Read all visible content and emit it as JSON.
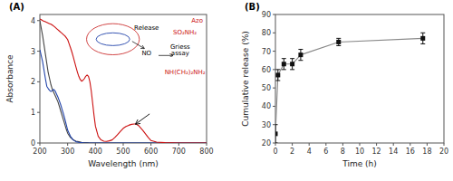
{
  "chart_data": [
    {
      "type": "line",
      "title": "(A)",
      "xlabel": "Wavelength (nm)",
      "ylabel": "Absorbance",
      "xlim": [
        200,
        800
      ],
      "ylim": [
        0,
        4.2
      ],
      "xticks": [
        200,
        300,
        400,
        500,
        600,
        700,
        800
      ],
      "yticks": [
        0,
        1,
        2,
        3,
        4
      ],
      "grid": false,
      "series": [
        {
          "color": "#444444",
          "x": [
            200,
            210,
            220,
            225,
            230,
            235,
            240,
            245,
            250,
            255,
            260,
            265,
            270,
            275,
            280,
            285,
            290,
            295,
            300,
            310,
            320,
            330,
            340,
            350,
            360,
            370,
            380,
            390,
            400,
            450,
            500,
            550,
            600,
            700,
            800
          ],
          "values": [
            4.0,
            3.5,
            2.9,
            2.6,
            2.3,
            2.1,
            1.9,
            1.75,
            1.65,
            1.55,
            1.45,
            1.35,
            1.2,
            1.05,
            0.9,
            0.75,
            0.6,
            0.45,
            0.32,
            0.18,
            0.1,
            0.06,
            0.04,
            0.02,
            0.01,
            0.01,
            0.0,
            0.0,
            0.0,
            0.0,
            0.0,
            0.0,
            0.0,
            0.0,
            0.0
          ]
        },
        {
          "color": "#2244aa",
          "x": [
            200,
            210,
            220,
            225,
            230,
            235,
            240,
            245,
            250,
            255,
            260,
            265,
            270,
            275,
            280,
            285,
            290,
            295,
            300,
            310,
            320,
            330,
            340,
            350,
            360,
            370,
            380,
            390,
            400,
            450,
            500,
            550,
            600,
            700,
            800
          ],
          "values": [
            3.05,
            2.65,
            2.1,
            1.85,
            1.78,
            1.72,
            1.68,
            1.72,
            1.75,
            1.7,
            1.6,
            1.5,
            1.38,
            1.25,
            1.1,
            0.95,
            0.78,
            0.6,
            0.42,
            0.22,
            0.1,
            0.04,
            0.02,
            0.01,
            0.0,
            0.0,
            0.0,
            0.0,
            0.0,
            0.0,
            0.0,
            0.0,
            0.0,
            0.0,
            0.0
          ]
        },
        {
          "color": "#cc1111",
          "x": [
            200,
            205,
            210,
            215,
            220,
            225,
            230,
            235,
            240,
            245,
            250,
            255,
            260,
            265,
            270,
            275,
            280,
            285,
            290,
            295,
            300,
            305,
            310,
            315,
            320,
            325,
            330,
            335,
            340,
            345,
            350,
            355,
            360,
            365,
            370,
            375,
            380,
            385,
            390,
            395,
            400,
            410,
            420,
            430,
            440,
            450,
            460,
            470,
            480,
            490,
            500,
            510,
            520,
            530,
            540,
            545,
            550,
            555,
            560,
            570,
            580,
            590,
            600,
            620,
            650,
            700,
            750,
            800
          ],
          "values": [
            4.05,
            4.03,
            4.0,
            3.98,
            3.96,
            3.94,
            3.92,
            3.9,
            3.88,
            3.85,
            3.82,
            3.78,
            3.74,
            3.7,
            3.66,
            3.62,
            3.58,
            3.54,
            3.5,
            3.44,
            3.38,
            3.25,
            3.12,
            2.98,
            2.82,
            2.65,
            2.48,
            2.32,
            2.18,
            2.08,
            2.02,
            2.05,
            2.1,
            2.18,
            2.22,
            2.18,
            2.0,
            1.7,
            1.3,
            0.9,
            0.55,
            0.22,
            0.1,
            0.06,
            0.05,
            0.07,
            0.1,
            0.18,
            0.28,
            0.38,
            0.48,
            0.54,
            0.58,
            0.61,
            0.62,
            0.62,
            0.6,
            0.57,
            0.52,
            0.42,
            0.3,
            0.18,
            0.08,
            0.03,
            0.01,
            0.0,
            0.0,
            0.0
          ]
        }
      ],
      "arrows": [
        {
          "x": 545,
          "y": 0.62,
          "x_start": 595,
          "y_start": 0.95
        }
      ],
      "annotations": [
        {
          "text": "Release"
        },
        {
          "text": "NO"
        },
        {
          "text": "Griess\nassay"
        },
        {
          "text": "Azo",
          "color": "#cc1111"
        },
        {
          "text": "SO₂NH₂",
          "color": "#cc1111"
        },
        {
          "text": "NH(CH₂)₂NH₂",
          "color": "#cc1111"
        }
      ]
    },
    {
      "type": "line",
      "title": "(B)",
      "xlabel": "Time (h)",
      "ylabel": "Cumulative release (%)",
      "xlim": [
        0,
        20
      ],
      "ylim": [
        20,
        90
      ],
      "xticks": [
        0,
        2,
        4,
        6,
        8,
        10,
        12,
        14,
        16,
        18,
        20
      ],
      "yticks": [
        20,
        30,
        40,
        50,
        60,
        70,
        80,
        90
      ],
      "grid": false,
      "series": [
        {
          "color": "#888888",
          "marker": "square",
          "marker_color": "#111111",
          "x": [
            0.0,
            0.3,
            1.0,
            2.0,
            3.0,
            7.5,
            17.5
          ],
          "values": [
            25,
            57,
            63,
            63,
            68,
            75,
            77
          ],
          "errors": [
            5,
            3,
            3,
            3,
            3,
            2,
            3
          ]
        }
      ]
    }
  ]
}
